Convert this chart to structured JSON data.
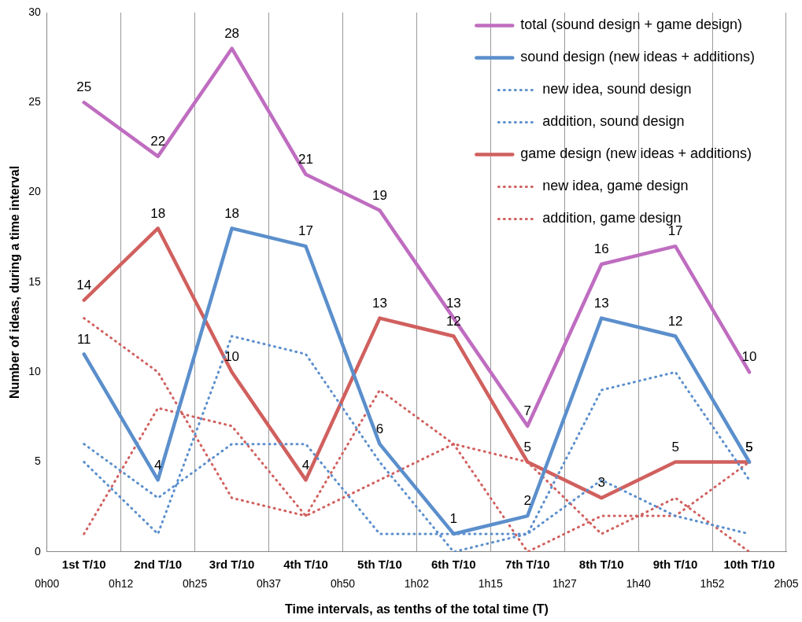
{
  "chart_data": {
    "type": "line",
    "xlabel": "Time intervals, as tenths of the total time (T)",
    "ylabel": "Number of ideas, during a time interval",
    "categories": [
      "1st T/10",
      "2nd T/10",
      "3rd T/10",
      "4th T/10",
      "5th T/10",
      "6th T/10",
      "7th T/10",
      "8th T/10",
      "9th T/10",
      "10th T/10"
    ],
    "annotations": [
      "0h00",
      "0h12",
      "0h25",
      "0h37",
      "0h50",
      "1h02",
      "1h15",
      "1h27",
      "1h40",
      "1h52",
      "2h05"
    ],
    "ylim": [
      0,
      30
    ],
    "yticks": [
      0,
      5,
      10,
      15,
      20,
      25,
      30
    ],
    "grid": "x",
    "legend": "top right",
    "marker": "none",
    "series": [
      {
        "name": "total (sound design + game design)",
        "color": "#bf6dc0",
        "line_style": "solid",
        "values": [
          25,
          22,
          28,
          21,
          19,
          13,
          7,
          16,
          17,
          10
        ],
        "value_labels": [
          "25",
          "22",
          "28",
          "21",
          "19",
          "13",
          "7",
          "16",
          "17",
          "10"
        ]
      },
      {
        "name": "sound design (new ideas + additions)",
        "color": "#5b8fcc",
        "line_style": "solid",
        "values": [
          11,
          4,
          18,
          17,
          6,
          1,
          2,
          13,
          12,
          5
        ],
        "value_labels": [
          "11",
          "4",
          "18",
          "17",
          "6",
          "1",
          "2",
          "13",
          "12",
          "5"
        ]
      },
      {
        "name": "new idea, sound design",
        "color": "#5b8fcc",
        "line_style": "dotted",
        "values": [
          5,
          1,
          12,
          11,
          5,
          0,
          1,
          9,
          10,
          4
        ]
      },
      {
        "name": "addition, sound design",
        "color": "#5b8fcc",
        "line_style": "dotted",
        "values": [
          6,
          3,
          6,
          6,
          1,
          1,
          1,
          4,
          2,
          1
        ]
      },
      {
        "name": "game design (new ideas + additions)",
        "color": "#d0605e",
        "line_style": "solid",
        "values": [
          14,
          18,
          10,
          4,
          13,
          12,
          5,
          3,
          5,
          5
        ],
        "value_labels": [
          "14",
          "18",
          "10",
          "4",
          "13",
          "12",
          "5",
          "3",
          "5",
          "5"
        ]
      },
      {
        "name": "new idea, game design",
        "color": "#d0605e",
        "line_style": "dotted",
        "values": [
          13,
          10,
          3,
          2,
          9,
          6,
          0,
          2,
          2,
          5
        ]
      },
      {
        "name": "addition, game design",
        "color": "#d0605e",
        "line_style": "dotted",
        "values": [
          1,
          8,
          7,
          2,
          4,
          6,
          5,
          1,
          3,
          0
        ]
      }
    ]
  }
}
